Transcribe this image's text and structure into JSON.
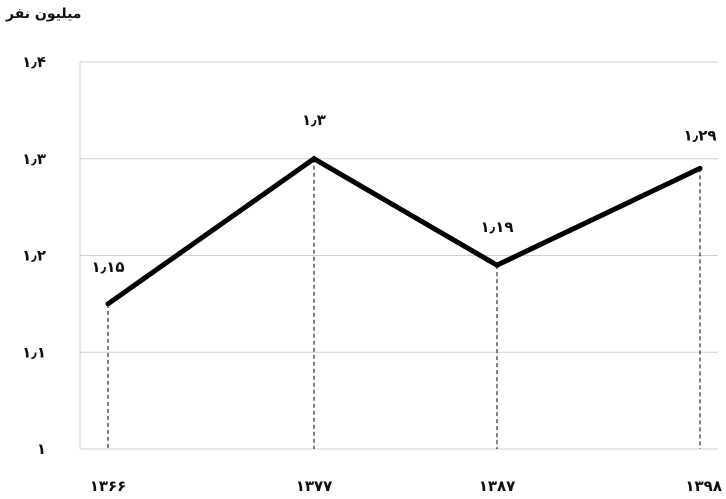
{
  "chart_data": {
    "type": "line",
    "title": "",
    "ylabel": "میلیون نفر",
    "xlabel": "",
    "categories": [
      "۱۳۶۶",
      "۱۳۷۷",
      "۱۳۸۷",
      "۱۳۹۸"
    ],
    "x": [
      1366,
      1377,
      1387,
      1398
    ],
    "series": [
      {
        "values": [
          1.15,
          1.3,
          1.19,
          1.29
        ],
        "data_labels": [
          "۱٫۱۵",
          "۱٫۳",
          "۱٫۱۹",
          "۱٫۲۹"
        ],
        "color": "#000000"
      }
    ],
    "ylim": [
      1,
      1.4
    ],
    "yticks": [
      1,
      1.1,
      1.2,
      1.3,
      1.4
    ],
    "ytick_labels": [
      "۱",
      "۱٫۱",
      "۱٫۲",
      "۱٫۳",
      "۱٫۴"
    ],
    "grid": true,
    "drop_lines": "dashed",
    "colors": {
      "line": "#000000",
      "grid": "#d0d0d0",
      "axis": "#888888"
    }
  }
}
